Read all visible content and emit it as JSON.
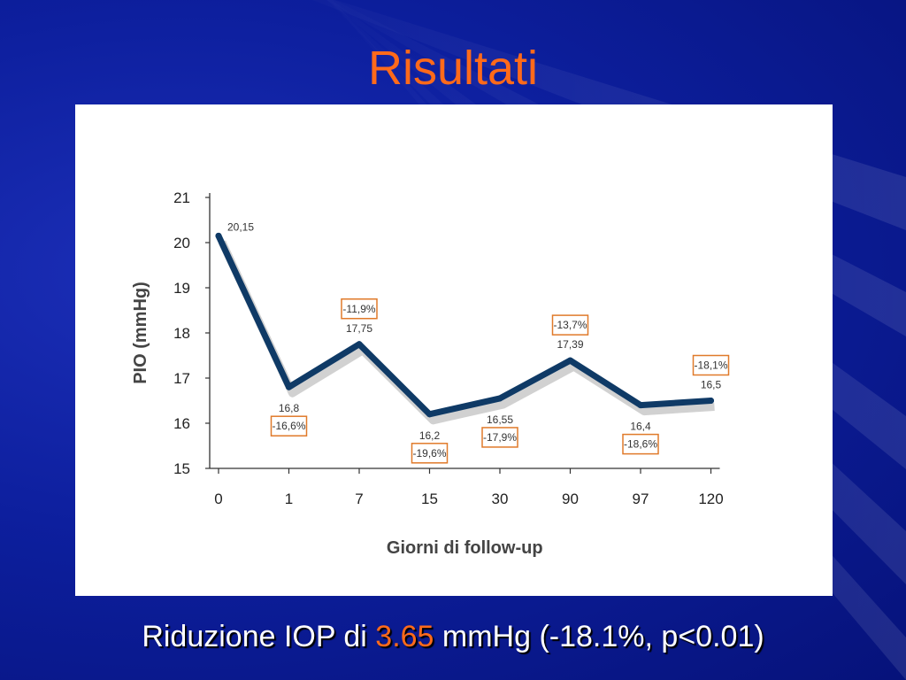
{
  "slide": {
    "title": "Risultati",
    "caption": {
      "before": "Riduzione IOP di ",
      "highlight": "3.65",
      "after": " mmHg (-18.1%, p<0.01)"
    },
    "colors": {
      "background": "#0d1f9e",
      "title": "#ff6a1a",
      "line": "#0f3a66",
      "box_border": "#e07a2a"
    }
  },
  "chart_data": {
    "type": "line",
    "title": "",
    "xlabel": "Giorni di follow-up",
    "ylabel": "PIO (mmHg)",
    "ylim": [
      15,
      21
    ],
    "yticks": [
      "15",
      "16",
      "17",
      "18",
      "19",
      "20",
      "21"
    ],
    "categories": [
      "0",
      "1",
      "7",
      "15",
      "30",
      "90",
      "97",
      "120"
    ],
    "values": [
      20.15,
      16.8,
      17.75,
      16.2,
      16.55,
      17.39,
      16.4,
      16.5
    ],
    "value_labels": [
      "20,15",
      "16,8",
      "17,75",
      "16,2",
      "16,55",
      "17,39",
      "16,4",
      "16,5"
    ],
    "percent_labels": [
      "",
      "-16,6%",
      "-11,9%",
      "-19,6%",
      "-17,9%",
      "-13,7%",
      "-18,6%",
      "-18,1%"
    ],
    "percent_position": [
      "",
      "below",
      "above",
      "below",
      "below",
      "above",
      "below",
      "above"
    ],
    "grid": false,
    "legend": "none"
  }
}
